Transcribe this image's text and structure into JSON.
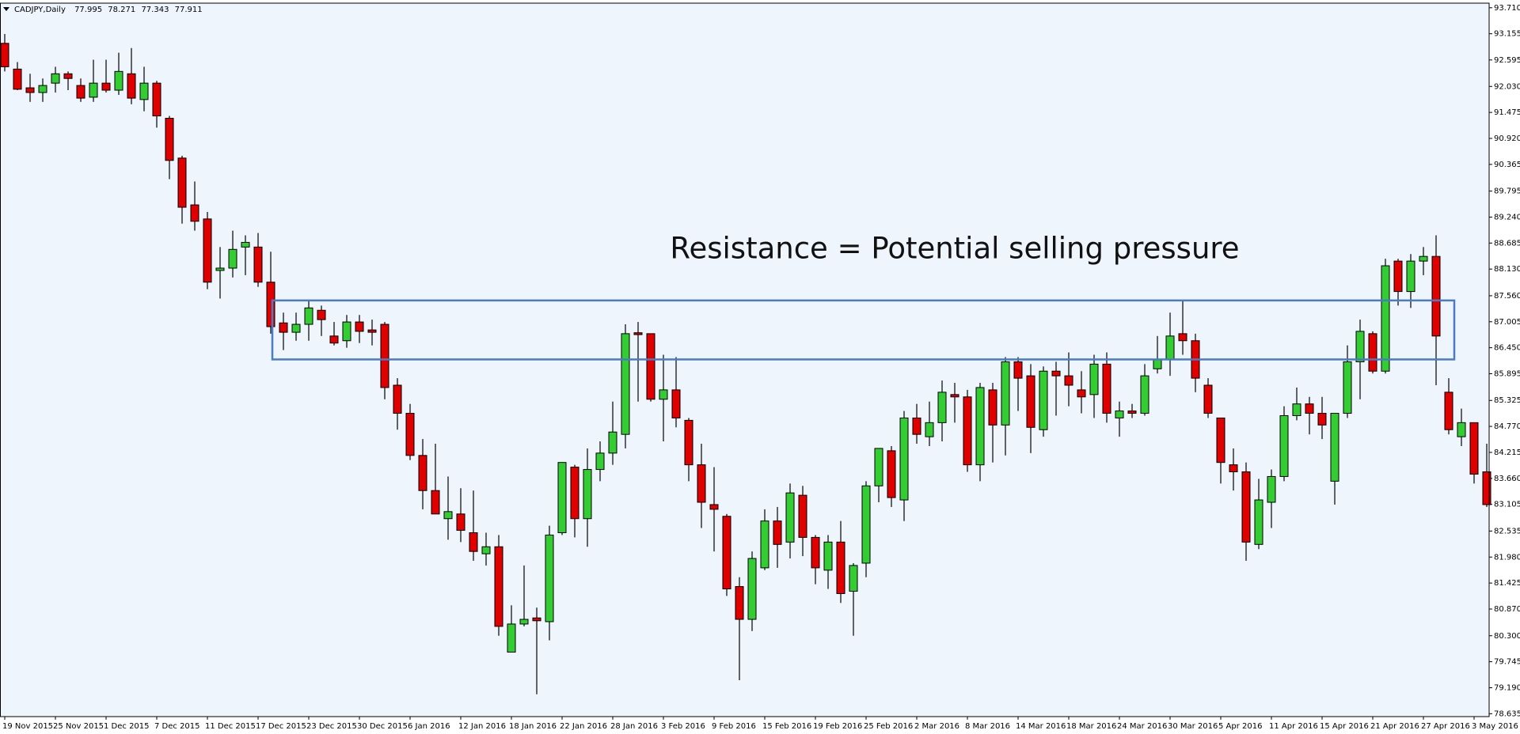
{
  "chart_data": {
    "type": "candlestick",
    "title": "CADJPY,Daily",
    "header_values": [
      77.995,
      78.271,
      77.343,
      77.911
    ],
    "annotation": "Resistance = Potential selling pressure",
    "resistance_zone": [
      86.2,
      87.46
    ],
    "zone_color": "#4a7cc4",
    "up_color": "#33cc33",
    "down_color": "#e00000",
    "background": "#eef5fd",
    "ylim": [
      78.573,
      93.808
    ],
    "yticks": [
      {
        "value": 93.71,
        "label": "93.710"
      },
      93.155,
      92.595,
      {
        "value": 92.03,
        "label": "92.030"
      },
      91.475,
      {
        "value": 90.92,
        "label": "90.920"
      },
      90.365,
      89.795,
      {
        "value": 89.24,
        "label": "89.240"
      },
      88.685,
      {
        "value": 88.13,
        "label": "88.130"
      },
      {
        "value": 87.56,
        "label": "87.560"
      },
      87.005,
      {
        "value": 86.45,
        "label": "86.450"
      },
      85.895,
      85.325,
      {
        "value": 84.77,
        "label": "84.770"
      },
      84.215,
      {
        "value": 83.66,
        "label": "83.660"
      },
      83.105,
      82.535,
      {
        "value": 81.98,
        "label": "81.980"
      },
      81.425,
      {
        "value": 80.87,
        "label": "80.870"
      },
      {
        "value": 80.3,
        "label": "80.300"
      },
      79.745,
      {
        "value": 79.19,
        "label": "79.190"
      },
      78.635
    ],
    "categories": [
      "19 Nov 2015",
      null,
      null,
      null,
      "25 Nov 2015",
      null,
      null,
      null,
      "1 Dec 2015",
      null,
      null,
      null,
      "7 Dec 2015",
      null,
      null,
      null,
      "11 Dec 2015",
      null,
      null,
      null,
      "17 Dec 2015",
      null,
      null,
      null,
      "23 Dec 2015",
      null,
      null,
      null,
      "30 Dec 2015",
      null,
      null,
      null,
      "6 Jan 2016",
      null,
      null,
      null,
      "12 Jan 2016",
      null,
      null,
      null,
      "18 Jan 2016",
      null,
      null,
      null,
      "22 Jan 2016",
      null,
      null,
      null,
      "28 Jan 2016",
      null,
      null,
      null,
      "3 Feb 2016",
      null,
      null,
      null,
      "9 Feb 2016",
      null,
      null,
      null,
      "15 Feb 2016",
      null,
      null,
      null,
      "19 Feb 2016",
      null,
      null,
      null,
      "25 Feb 2016",
      null,
      null,
      null,
      "2 Mar 2016",
      null,
      null,
      null,
      "8 Mar 2016",
      null,
      null,
      null,
      "14 Mar 2016",
      null,
      null,
      null,
      "18 Mar 2016",
      null,
      null,
      null,
      "24 Mar 2016",
      null,
      null,
      null,
      "30 Mar 2016",
      null,
      null,
      null,
      "5 Apr 2016",
      null,
      null,
      null,
      "11 Apr 2016",
      null,
      null,
      null,
      "15 Apr 2016",
      null,
      null,
      null,
      "21 Apr 2016",
      null,
      null,
      null,
      "27 Apr 2016",
      null,
      null,
      null,
      "3 May 2016",
      null
    ],
    "open": [
      92.95,
      92.4,
      92.0,
      91.9,
      92.1,
      92.3,
      92.05,
      91.8,
      92.1,
      91.95,
      92.3,
      91.75,
      92.1,
      91.35,
      90.5,
      89.5,
      89.2,
      88.1,
      88.15,
      88.6,
      88.6,
      87.85,
      86.98,
      86.78,
      86.95,
      87.25,
      86.7,
      86.6,
      87.0,
      86.83,
      86.95,
      85.65,
      85.05,
      84.15,
      83.4,
      82.8,
      82.9,
      82.5,
      82.05,
      82.2,
      79.95,
      80.55,
      80.68,
      80.6,
      82.5,
      83.9,
      82.8,
      83.85,
      84.2,
      84.6,
      86.77,
      86.75,
      85.35,
      85.55,
      84.9,
      83.95,
      83.1,
      82.85,
      81.35,
      80.65,
      81.75,
      82.75,
      82.3,
      83.3,
      82.4,
      81.7,
      82.3,
      81.25,
      81.85,
      83.5,
      84.25,
      83.2,
      84.95,
      84.55,
      84.85,
      85.45,
      85.4,
      83.95,
      85.55,
      84.8,
      86.15,
      85.85,
      84.7,
      85.95,
      85.85,
      85.55,
      85.45,
      86.1,
      84.95,
      85.1,
      85.05,
      86.0,
      86.2,
      86.75,
      86.6,
      85.65,
      84.95,
      83.95,
      83.8,
      82.25,
      83.15,
      83.7,
      85.0,
      85.25,
      85.05,
      83.6,
      85.05,
      86.15,
      86.75,
      85.95,
      88.3,
      87.65,
      88.3,
      88.4,
      85.5,
      84.55,
      84.85,
      83.8
    ],
    "high": [
      93.15,
      92.55,
      92.3,
      92.2,
      92.45,
      92.35,
      92.2,
      92.6,
      92.6,
      92.75,
      92.85,
      92.45,
      92.15,
      91.4,
      90.55,
      90.0,
      89.35,
      88.6,
      88.95,
      88.85,
      88.9,
      88.5,
      87.2,
      87.2,
      87.45,
      87.35,
      87.0,
      87.15,
      87.15,
      87.05,
      87.0,
      85.8,
      85.25,
      84.5,
      84.4,
      83.7,
      83.45,
      83.4,
      82.5,
      82.45,
      80.95,
      81.8,
      80.9,
      82.65,
      84.0,
      83.95,
      84.3,
      84.45,
      85.3,
      86.95,
      87.0,
      86.75,
      86.3,
      86.25,
      84.95,
      84.4,
      83.9,
      82.9,
      81.55,
      82.1,
      83.0,
      83.05,
      83.55,
      83.5,
      82.45,
      82.45,
      82.75,
      81.85,
      83.6,
      84.3,
      84.35,
      85.1,
      85.25,
      85.3,
      85.75,
      85.7,
      85.55,
      85.7,
      85.7,
      86.25,
      86.25,
      86.1,
      86.05,
      86.15,
      86.35,
      85.95,
      86.3,
      86.35,
      85.3,
      85.25,
      86.1,
      86.7,
      87.2,
      87.45,
      86.75,
      85.8,
      84.95,
      84.3,
      84.0,
      83.65,
      83.85,
      85.2,
      85.6,
      85.4,
      85.4,
      85.05,
      86.5,
      87.05,
      86.8,
      88.35,
      88.35,
      88.45,
      88.6,
      88.85,
      85.8,
      85.15,
      84.85,
      84.4
    ],
    "low": [
      92.35,
      91.95,
      91.7,
      91.7,
      91.9,
      91.95,
      91.7,
      91.7,
      91.9,
      91.85,
      91.65,
      91.5,
      91.15,
      90.05,
      89.1,
      88.95,
      87.7,
      87.5,
      87.95,
      88.0,
      87.75,
      86.75,
      86.4,
      86.6,
      86.6,
      86.7,
      86.5,
      86.45,
      86.55,
      86.5,
      85.35,
      84.7,
      84.05,
      83.0,
      82.9,
      82.35,
      82.3,
      81.9,
      81.8,
      80.3,
      79.95,
      80.5,
      79.05,
      80.2,
      82.45,
      82.4,
      82.2,
      83.6,
      83.95,
      84.3,
      85.3,
      85.3,
      84.45,
      84.75,
      83.6,
      82.6,
      82.1,
      81.15,
      79.35,
      80.4,
      81.7,
      81.75,
      81.95,
      82.0,
      81.4,
      81.3,
      81.0,
      80.3,
      81.55,
      83.15,
      83.05,
      82.75,
      84.4,
      84.35,
      84.45,
      84.85,
      83.8,
      83.6,
      84.0,
      84.15,
      85.1,
      84.2,
      84.55,
      85.0,
      85.2,
      85.05,
      84.95,
      84.85,
      84.55,
      84.95,
      85.0,
      85.9,
      85.85,
      86.3,
      85.5,
      84.95,
      83.55,
      83.4,
      81.9,
      82.15,
      82.6,
      83.6,
      84.9,
      84.6,
      84.5,
      83.1,
      84.95,
      85.35,
      85.9,
      85.9,
      87.35,
      87.3,
      88.0,
      85.65,
      84.6,
      84.35,
      83.55,
      83.05
    ],
    "close": [
      92.45,
      91.97,
      91.9,
      92.05,
      92.3,
      92.2,
      91.78,
      92.1,
      91.95,
      92.35,
      91.78,
      92.1,
      91.4,
      90.45,
      89.45,
      89.15,
      87.85,
      88.15,
      88.55,
      88.7,
      87.85,
      86.9,
      86.78,
      86.95,
      87.3,
      87.05,
      86.55,
      87.0,
      86.8,
      86.78,
      85.6,
      85.05,
      84.15,
      83.4,
      82.9,
      82.95,
      82.55,
      82.1,
      82.2,
      80.5,
      80.55,
      80.65,
      80.62,
      82.45,
      84.0,
      82.8,
      83.85,
      84.2,
      84.65,
      86.75,
      86.73,
      85.35,
      85.55,
      84.95,
      83.95,
      83.15,
      83.0,
      81.3,
      80.65,
      81.95,
      82.75,
      82.25,
      83.35,
      82.4,
      81.75,
      82.3,
      81.2,
      81.8,
      83.5,
      84.3,
      83.25,
      84.95,
      84.6,
      84.85,
      85.5,
      85.4,
      83.95,
      85.6,
      84.8,
      86.15,
      85.8,
      84.75,
      85.95,
      85.85,
      85.65,
      85.4,
      86.1,
      85.05,
      85.1,
      85.05,
      85.85,
      86.2,
      86.7,
      86.6,
      85.8,
      85.05,
      84.0,
      83.8,
      82.3,
      83.2,
      83.7,
      85.0,
      85.25,
      85.05,
      84.8,
      85.05,
      86.15,
      86.8,
      85.95,
      88.2,
      87.65,
      88.3,
      88.4,
      86.7,
      84.7,
      84.85,
      83.75,
      83.1
    ]
  }
}
